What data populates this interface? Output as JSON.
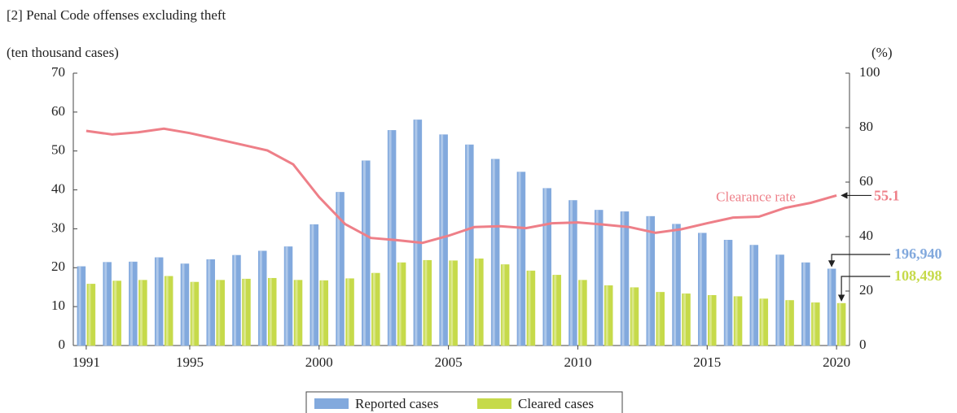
{
  "chart_data": {
    "type": "bar-line",
    "title": "[2] Penal Code offenses excluding theft",
    "ylabel": "(ten thousand cases)",
    "y2label": "(%)",
    "categories": [
      "1991",
      null,
      null,
      null,
      "1995",
      null,
      null,
      null,
      null,
      "2000",
      null,
      null,
      null,
      null,
      "2005",
      null,
      null,
      null,
      null,
      "2010",
      null,
      null,
      null,
      null,
      "2015",
      null,
      null,
      null,
      null,
      "2020"
    ],
    "series": [
      {
        "name": "Reported cases",
        "color": "#82a9dd",
        "type": "bar",
        "values": [
          20.3,
          21.4,
          21.5,
          22.6,
          21.0,
          22.1,
          23.2,
          24.3,
          25.4,
          31.1,
          39.4,
          47.5,
          55.3,
          58.0,
          54.2,
          51.6,
          47.9,
          44.6,
          40.4,
          37.3,
          34.8,
          34.4,
          33.2,
          31.2,
          28.9,
          27.1,
          25.8,
          23.3,
          21.3,
          19.694
        ],
        "value_labels": [
          null,
          null,
          null,
          null,
          null,
          null,
          null,
          null,
          null,
          null,
          null,
          null,
          null,
          null,
          null,
          null,
          null,
          null,
          null,
          null,
          null,
          null,
          null,
          null,
          null,
          null,
          null,
          null,
          null,
          "196,940"
        ]
      },
      {
        "name": "Cleared cases",
        "color": "#c6da4a",
        "type": "bar",
        "values": [
          15.8,
          16.6,
          16.8,
          17.8,
          16.3,
          16.8,
          17.1,
          17.3,
          16.8,
          16.7,
          17.2,
          18.6,
          21.3,
          21.9,
          21.8,
          22.3,
          20.8,
          19.2,
          18.1,
          16.8,
          15.4,
          14.9,
          13.7,
          13.3,
          12.9,
          12.6,
          12.0,
          11.6,
          11.0,
          10.8498
        ],
        "value_labels": [
          null,
          null,
          null,
          null,
          null,
          null,
          null,
          null,
          null,
          null,
          null,
          null,
          null,
          null,
          null,
          null,
          null,
          null,
          null,
          null,
          null,
          null,
          null,
          null,
          null,
          null,
          null,
          null,
          null,
          "108,498"
        ]
      },
      {
        "name": "Clearance rate",
        "color": "#ee7f88",
        "type": "line",
        "axis": "y2",
        "values": [
          78.8,
          77.5,
          78.3,
          79.6,
          78.0,
          75.9,
          73.8,
          71.6,
          66.5,
          54.5,
          44.6,
          39.5,
          38.7,
          37.7,
          40.3,
          43.5,
          43.8,
          43.1,
          44.9,
          45.2,
          44.4,
          43.5,
          41.4,
          42.7,
          44.9,
          47.0,
          47.3,
          50.5,
          52.4,
          55.1
        ]
      }
    ],
    "ylim": [
      0,
      70
    ],
    "yticks": [
      0,
      10,
      20,
      30,
      40,
      50,
      60,
      70
    ],
    "y2lim": [
      0,
      100
    ],
    "y2ticks": [
      0,
      20,
      40,
      60,
      80,
      100
    ],
    "legend": "bottom"
  }
}
